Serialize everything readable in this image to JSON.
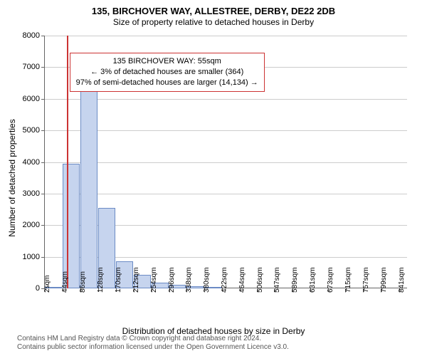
{
  "chart": {
    "type": "histogram",
    "title_main": "135, BIRCHOVER WAY, ALLESTREE, DERBY, DE22 2DB",
    "title_sub": "Size of property relative to detached houses in Derby",
    "title_fontsize": 13,
    "subtitle_fontsize": 12,
    "ylabel": "Number of detached properties",
    "xlabel": "Distribution of detached houses by size in Derby",
    "label_fontsize": 12,
    "tick_fontsize": 11,
    "background_color": "#ffffff",
    "grid_color": "#cccccc",
    "axis_color": "#666666",
    "bar_fill": "#c6d4ee",
    "bar_border": "#6b8bc5",
    "marker_color": "#cc3333",
    "ylim": [
      0,
      8000
    ],
    "yticks": [
      0,
      1000,
      2000,
      3000,
      4000,
      5000,
      6000,
      7000,
      8000
    ],
    "xrange": [
      0,
      860
    ],
    "xticks": [
      {
        "pos": 2,
        "label": "2sqm"
      },
      {
        "pos": 44,
        "label": "44sqm"
      },
      {
        "pos": 86,
        "label": "86sqm"
      },
      {
        "pos": 128,
        "label": "128sqm"
      },
      {
        "pos": 170,
        "label": "170sqm"
      },
      {
        "pos": 212,
        "label": "212sqm"
      },
      {
        "pos": 254,
        "label": "254sqm"
      },
      {
        "pos": 296,
        "label": "296sqm"
      },
      {
        "pos": 338,
        "label": "338sqm"
      },
      {
        "pos": 380,
        "label": "380sqm"
      },
      {
        "pos": 422,
        "label": "422sqm"
      },
      {
        "pos": 464,
        "label": "464sqm"
      },
      {
        "pos": 506,
        "label": "506sqm"
      },
      {
        "pos": 547,
        "label": "547sqm"
      },
      {
        "pos": 589,
        "label": "589sqm"
      },
      {
        "pos": 631,
        "label": "631sqm"
      },
      {
        "pos": 673,
        "label": "673sqm"
      },
      {
        "pos": 715,
        "label": "715sqm"
      },
      {
        "pos": 757,
        "label": "757sqm"
      },
      {
        "pos": 799,
        "label": "799sqm"
      },
      {
        "pos": 841,
        "label": "841sqm"
      }
    ],
    "bin_width": 42,
    "bars": [
      {
        "x0": 2,
        "y": 20
      },
      {
        "x0": 44,
        "y": 3950
      },
      {
        "x0": 86,
        "y": 6750
      },
      {
        "x0": 128,
        "y": 2550
      },
      {
        "x0": 170,
        "y": 850
      },
      {
        "x0": 212,
        "y": 420
      },
      {
        "x0": 254,
        "y": 190
      },
      {
        "x0": 296,
        "y": 110
      },
      {
        "x0": 338,
        "y": 70
      },
      {
        "x0": 380,
        "y": 50
      }
    ],
    "marker_x": 55,
    "annotation": {
      "line1": "135 BIRCHOVER WAY: 55sqm",
      "line2": "← 3% of detached houses are smaller (364)",
      "line3": "97% of semi-detached houses are larger (14,134) →",
      "x": 60,
      "y_top": 6500,
      "border_color": "#cc3333",
      "fontsize": 11
    }
  },
  "attribution": {
    "line1": "Contains HM Land Registry data © Crown copyright and database right 2024.",
    "line2": "Contains public sector information licensed under the Open Government Licence v3.0."
  }
}
